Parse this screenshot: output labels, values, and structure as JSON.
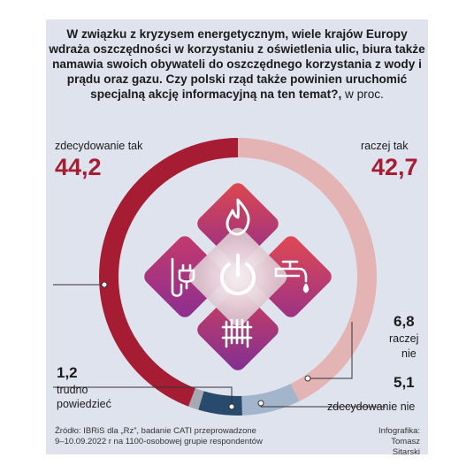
{
  "question": {
    "text": "W związku z kryzysem energetycznym, wiele krajów Europy wdraża oszczędności w korzystaniu z oświetlenia ulic, biura także namawia swoich obywateli do oszczędnego korzystania z wody i prądu oraz gazu. Czy polski rząd także powinien uruchomić specjalną akcję informacyjną na ten temat?,",
    "unit": " w proc."
  },
  "chart_data": {
    "type": "pie",
    "title": "W związku z kryzysem energetycznym, wiele krajów Europy wdraża oszczędności w korzystaniu z oświetlenia ulic, biura także namawia swoich obywateli do oszczędnego korzystania z wody i prądu oraz gazu. Czy polski rząd także powinien uruchomić specjalną akcję informacyjną na ten temat?",
    "unit": "w proc.",
    "slices": [
      {
        "label": "zdecydowanie tak",
        "value": 44.2,
        "value_text": "44,2",
        "color": "#a61d33"
      },
      {
        "label": "raczej tak",
        "value": 42.7,
        "value_text": "42,7",
        "color": "#e4b3b3"
      },
      {
        "label": "raczej nie",
        "value": 6.8,
        "value_text": "6,8",
        "color": "#a3b5cb"
      },
      {
        "label": "zdecydowanie nie",
        "value": 5.1,
        "value_text": "5,1",
        "color": "#284a6c"
      },
      {
        "label": "trudno powiedzieć",
        "value": 1.2,
        "value_text": "1,2",
        "color": "#a4a9b2"
      }
    ]
  },
  "labels": {
    "zdecydowanie_tak": "zdecydowanie tak",
    "raczej_tak": "raczej tak",
    "raczej_nie_1": "raczej",
    "raczej_nie_2": "nie",
    "zdecydowanie_nie": "zdecydowanie nie",
    "trudno_1": "trudno",
    "trudno_2": "powiedzieć"
  },
  "icons": [
    "flame-icon",
    "plug-icon",
    "power-icon",
    "faucet-icon",
    "radiator-icon"
  ],
  "source": {
    "line1": "Źródło: IBRiS dla „Rz”, badanie CATI przeprowadzone",
    "line2": "9–10.09.2022 r na 1100-osobowej grupie respondentów"
  },
  "credit": {
    "line1": "Infografika:",
    "line2": "Tomasz Sitarski"
  },
  "colors": {
    "accent": "#a61d33",
    "panel": "#dfe3ed"
  }
}
